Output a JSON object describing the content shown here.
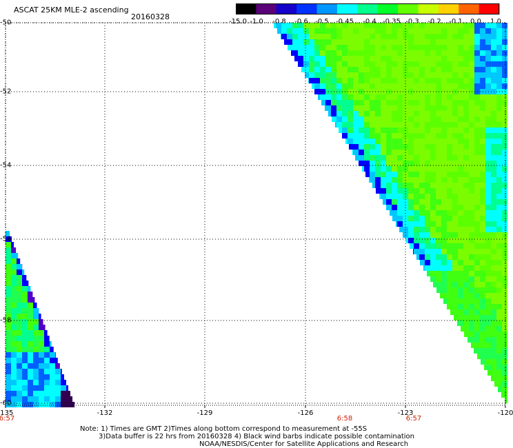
{
  "header": {
    "title": "ASCAT 25KM MLE-2 ascending",
    "date": "20160328"
  },
  "colorbar": {
    "labels": [
      "-15.0",
      "-1.0",
      "-0.8",
      "-0.6",
      "-0.5",
      "-0.45",
      "-0.4",
      "-0.35",
      "-0.3",
      "-0.2",
      "-0.1",
      "0.0",
      "1.0"
    ],
    "colors": [
      "#000000",
      "#5a0078",
      "#1400c8",
      "#0032ff",
      "#0096ff",
      "#00ffff",
      "#00ff8c",
      "#00ff28",
      "#64ff00",
      "#c8ff00",
      "#ffd200",
      "#ff6400",
      "#ff0000"
    ]
  },
  "axes": {
    "lat_labels": [
      "-50",
      "-52",
      "-54",
      "-56",
      "-58",
      "-60"
    ],
    "lon_labels": [
      "-135",
      "-132",
      "-129",
      "-126",
      "-123",
      "-120"
    ],
    "time_labels": [
      "6:57",
      "6:58",
      "6:57"
    ]
  },
  "notes": {
    "line1": "Note: 1) Times are GMT 2)Times along bottom correspond to measurement at -55S",
    "line2": "3)Data buffer is 22 hrs from 20160328 4) Black wind barbs indicate possible contamination",
    "line3": "NOAA/NESDIS/Center for Satellite Applications and Research"
  }
}
